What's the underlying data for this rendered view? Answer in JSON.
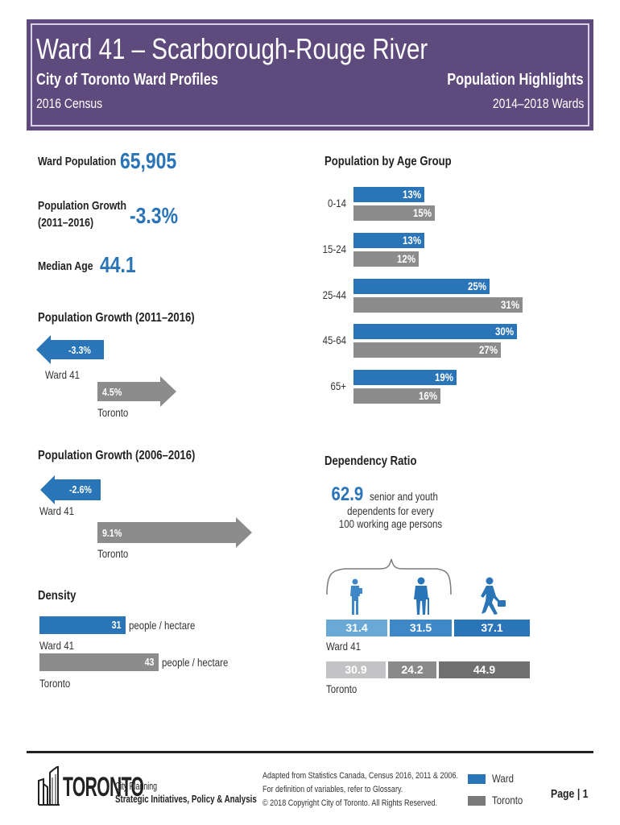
{
  "header": {
    "title": "Ward 41 – Scarborough-Rouge River",
    "subtitle_left": "City of Toronto Ward Profiles",
    "subtitle_right": "Population Highlights",
    "census_left": "2016 Census",
    "census_right": "2014–2018 Wards",
    "background_color": "#5e4a7c"
  },
  "summary": {
    "ward_population_label": "Ward Population",
    "ward_population_value": "65,905",
    "growth_label_line1": "Population Growth",
    "growth_label_line2": "(2011–2016)",
    "growth_value": "-3.3%",
    "median_age_label": "Median Age",
    "median_age_value": "44.1"
  },
  "growth_2011": {
    "title": "Population Growth (2011–2016)",
    "ward_value": "-3.3%",
    "ward_label": "Ward 41",
    "toronto_value": "4.5%",
    "toronto_label": "Toronto"
  },
  "growth_2006": {
    "title": "Population Growth (2006–2016)",
    "ward_value": "-2.6%",
    "ward_label": "Ward 41",
    "toronto_value": "9.1%",
    "toronto_label": "Toronto"
  },
  "density": {
    "title": "Density",
    "ward_value": "31",
    "ward_unit": "people / hectare",
    "ward_label": "Ward 41",
    "toronto_value": "43",
    "toronto_unit": "people / hectare",
    "toronto_label": "Toronto",
    "ward_number": 31,
    "toronto_number": 43
  },
  "chart_data": {
    "type": "bar",
    "title": "Population by Age Group",
    "orientation": "horizontal",
    "categories": [
      "0-14",
      "15-24",
      "25-44",
      "45-64",
      "65+"
    ],
    "series": [
      {
        "name": "Ward",
        "color": "#2a74b8",
        "values": [
          13,
          13,
          25,
          30,
          19
        ],
        "labels": [
          "13%",
          "13%",
          "25%",
          "30%",
          "19%"
        ]
      },
      {
        "name": "Toronto",
        "color": "#8c8c8c",
        "values": [
          15,
          12,
          31,
          27,
          16
        ],
        "labels": [
          "15%",
          "12%",
          "31%",
          "27%",
          "16%"
        ]
      }
    ],
    "xlabel": "",
    "ylabel": "",
    "xlim": [
      0,
      35
    ]
  },
  "dependency": {
    "title": "Dependency Ratio",
    "value": "62.9",
    "text_line1": "senior and youth",
    "text_line2": "dependents for every",
    "text_line3": "100 working age persons",
    "ward_label": "Ward 41",
    "toronto_label": "Toronto",
    "ward_values": [
      "31.4",
      "31.5",
      "37.1"
    ],
    "toronto_values": [
      "30.9",
      "24.2",
      "44.9"
    ],
    "ward_colors": [
      "#6aa8d6",
      "#3e88c8",
      "#2a74b8"
    ],
    "toronto_colors": [
      "#c3c3c6",
      "#8a8a8a",
      "#6f6f6f"
    ],
    "icons": [
      "youth-icon",
      "senior-icon",
      "worker-icon"
    ]
  },
  "footer": {
    "logo_text": "TORONTO",
    "dept_line1": "City Planning",
    "dept_line2": "Strategic Initiatives, Policy & Analysis",
    "source_line1": "Adapted from Statistics Canada, Census 2016, 2011 & 2006.",
    "source_line2": "For definition of variables, refer to Glossary.",
    "source_line3": "© 2018 Copyright City of Toronto. All Rights Reserved.",
    "legend_ward": "Ward",
    "legend_toronto": "Toronto",
    "page_label": "Page | 1"
  }
}
